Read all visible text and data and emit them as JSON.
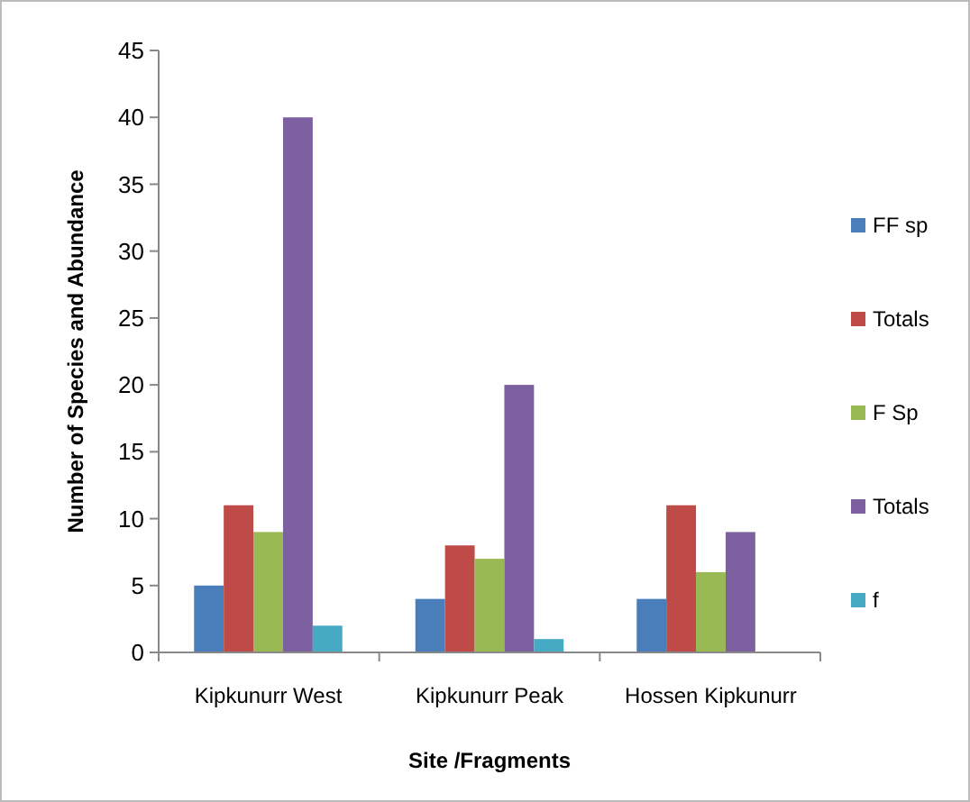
{
  "chart_data": {
    "type": "bar",
    "xlabel": "Site /Fragments",
    "ylabel": "Number of Species and Abundance",
    "categories": [
      "Kipkunurr West",
      "Kipkunurr Peak",
      "Hossen Kipkunurr"
    ],
    "series": [
      {
        "name": "FF sp",
        "color": "#4a7ebb",
        "values": [
          5,
          4,
          4
        ]
      },
      {
        "name": "Totals",
        "color": "#be4b48",
        "values": [
          11,
          8,
          11
        ]
      },
      {
        "name": "F Sp",
        "color": "#98b954",
        "values": [
          9,
          7,
          6
        ]
      },
      {
        "name": "Totals",
        "color": "#7d60a0",
        "values": [
          40,
          20,
          9
        ]
      },
      {
        "name": "f",
        "color": "#46aac5",
        "values": [
          2,
          1,
          null
        ]
      }
    ],
    "ylim": [
      0,
      45
    ],
    "yticks": [
      0,
      5,
      10,
      15,
      20,
      25,
      30,
      35,
      40,
      45
    ],
    "grid": false,
    "legend": "right"
  }
}
